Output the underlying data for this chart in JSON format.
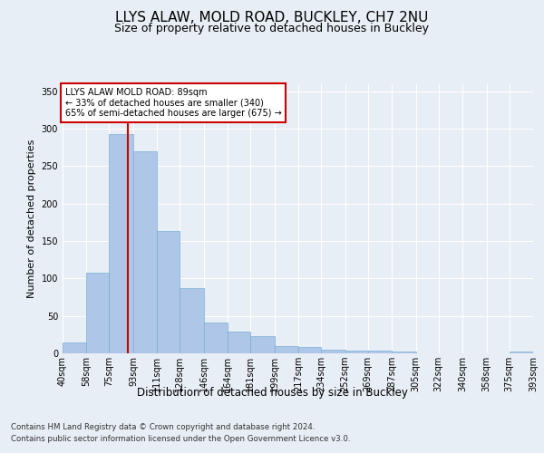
{
  "title": "LLYS ALAW, MOLD ROAD, BUCKLEY, CH7 2NU",
  "subtitle": "Size of property relative to detached houses in Buckley",
  "xlabel": "Distribution of detached houses by size in Buckley",
  "ylabel": "Number of detached properties",
  "footer_line1": "Contains HM Land Registry data © Crown copyright and database right 2024.",
  "footer_line2": "Contains public sector information licensed under the Open Government Licence v3.0.",
  "bin_edges": [
    40,
    58,
    75,
    93,
    111,
    128,
    146,
    164,
    181,
    199,
    217,
    234,
    252,
    269,
    287,
    305,
    322,
    340,
    358,
    375,
    393
  ],
  "bin_labels": [
    "40sqm",
    "58sqm",
    "75sqm",
    "93sqm",
    "111sqm",
    "128sqm",
    "146sqm",
    "164sqm",
    "181sqm",
    "199sqm",
    "217sqm",
    "234sqm",
    "252sqm",
    "269sqm",
    "287sqm",
    "305sqm",
    "322sqm",
    "340sqm",
    "358sqm",
    "375sqm",
    "393sqm"
  ],
  "bar_heights": [
    15,
    108,
    293,
    270,
    163,
    87,
    41,
    29,
    23,
    10,
    8,
    5,
    4,
    4,
    3,
    0,
    0,
    0,
    0,
    3
  ],
  "bar_color": "#aec6e8",
  "bar_edgecolor": "#7aafd4",
  "subject_size": 89,
  "red_line_color": "#cc0000",
  "annotation_text_line1": "LLYS ALAW MOLD ROAD: 89sqm",
  "annotation_text_line2": "← 33% of detached houses are smaller (340)",
  "annotation_text_line3": "65% of semi-detached houses are larger (675) →",
  "annotation_box_color": "#ffffff",
  "annotation_box_edgecolor": "#cc0000",
  "ylim": [
    0,
    360
  ],
  "yticks": [
    0,
    50,
    100,
    150,
    200,
    250,
    300,
    350
  ],
  "bg_color": "#e8eef5",
  "plot_bg_color": "#e8eef5",
  "grid_color": "#ffffff",
  "title_fontsize": 11,
  "subtitle_fontsize": 9,
  "axis_label_fontsize": 8.5,
  "tick_fontsize": 7,
  "ylabel_fontsize": 8
}
